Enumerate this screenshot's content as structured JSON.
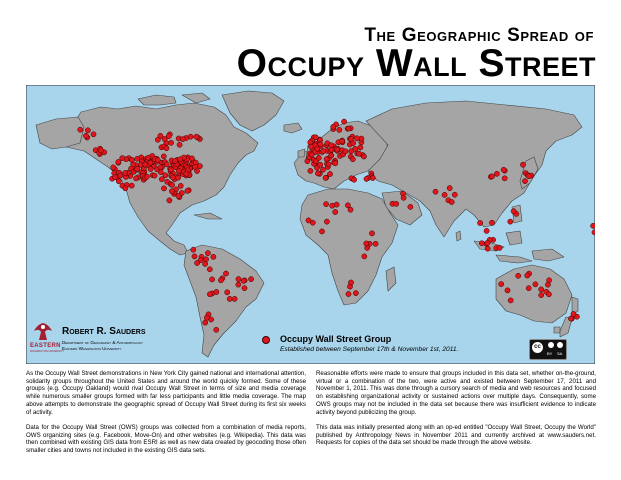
{
  "title": {
    "line1": "The Geographic Spread of",
    "line2": "Occupy Wall Street"
  },
  "author": {
    "name": "Robert R. Sauders",
    "dept": "Department of Geography & Anthropology",
    "university": "Eastern Washington University",
    "logo_text": "EASTERN",
    "logo_subtext": "WASHINGTON UNIVERSITY"
  },
  "legend": {
    "label": "Occupy Wall Street Group",
    "subtitle": "Established between September 17th & November 1st, 2011."
  },
  "license": {
    "cc": "cc",
    "by": "BY",
    "sa": "SA"
  },
  "colors": {
    "ocean": "#a8d4ec",
    "land": "#a5a5a5",
    "coast": "#444444",
    "dot": "#e0161c",
    "dot_outline": "#3a0000"
  },
  "paragraphs": {
    "p1": "As the Occupy Wall Street demonstrations in New York City gained national and international attention, solidarity groups throughout the United States and around the world quickly formed. Some of these groups (e.g. Occupy Oakland) would rival Occupy Wall Street in terms of size and media coverage while numerous smaller groups formed with far less participants and little media coverage. The map above attempts to demonstrate the geographic spread of Occupy Wall Street during its first six weeks of activity.",
    "p2": "Data for the Occupy Wall Street (OWS) groups was collected from a combination of media reports, OWS organizing sites (e.g. Facebook, Move-On) and other websites (e.g. Wikipedia). This data was then combined with existing GIS data from ESRI as well as new data created by geocoding those often smaller cities and towns not included in the existing GIS data sets.",
    "p3": "Reasonable efforts were made to ensure that groups included in this data set, whether on-the-ground, virtual or a combination of the two, were active and existed between September 17, 2011 and November 1, 2011. This was done through a cursory search of media and web resources and focused on establishing organizational activity or sustained actions over multiple days. Consequently, some OWS groups may not be included in the data set because there was insufficient evidence to indicate activity beyond publicizing the group.",
    "p4": "This data was initially presented along with an op-ed entitled \"Occupy Wall Street, Occupy the World\" published by Anthropology News in November 2011 and currently archived at www.sauders.net. Requests for copies of the data set should be made through the above website."
  }
}
